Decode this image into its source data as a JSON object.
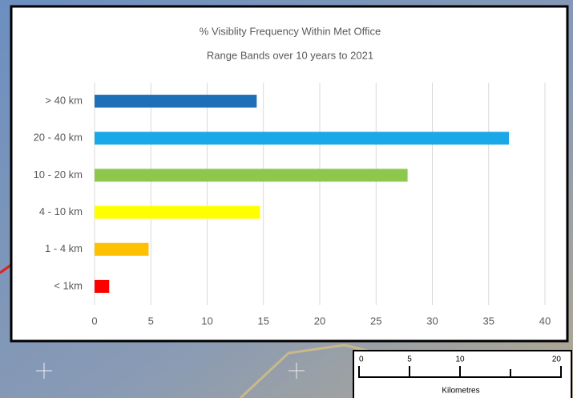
{
  "chart_data": {
    "type": "bar",
    "orientation": "horizontal",
    "title": [
      "% Visiblity Frequency Within Met Office",
      "Range Bands over 10 years to 2021"
    ],
    "categories": [
      "> 40 km",
      "20 - 40 km",
      "10 - 20 km",
      "4 - 10 km",
      "1 - 4 km",
      "< 1km"
    ],
    "values": [
      14.4,
      36.8,
      27.8,
      14.7,
      4.8,
      1.3
    ],
    "colors": [
      "#1f6fb8",
      "#1aa8e8",
      "#8dc84c",
      "#ffff00",
      "#ffc000",
      "#ff0000"
    ],
    "xlim": [
      0,
      40
    ],
    "xticks": [
      0,
      5,
      10,
      15,
      20,
      25,
      30,
      35,
      40
    ],
    "grid": true
  },
  "scale_bar": {
    "ticks": [
      0,
      5,
      10,
      20
    ],
    "unit": "Kilometres"
  }
}
